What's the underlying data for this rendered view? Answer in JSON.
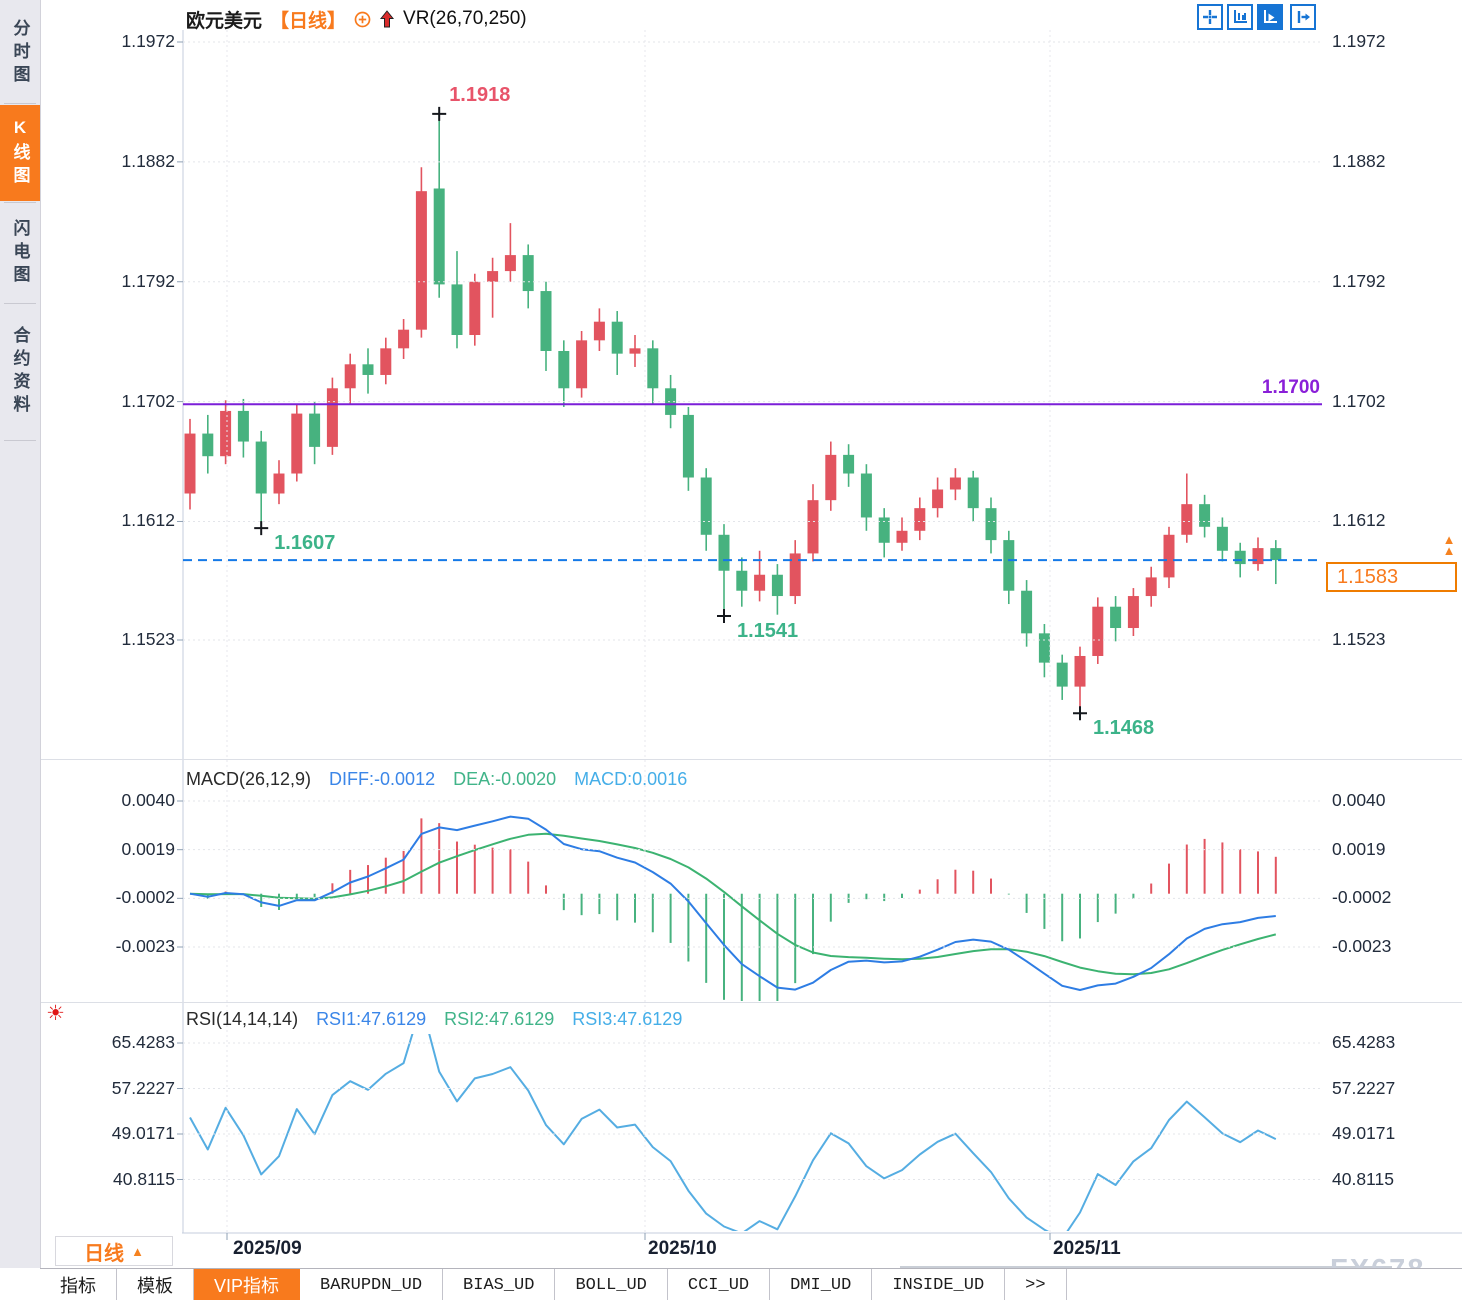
{
  "header": {
    "symbol": "欧元美元",
    "period_tag": "【日线】",
    "overlay_indicator": "VR(26,70,250)"
  },
  "toolbar_icons": [
    "crosshair-icon",
    "axis-scale-icon",
    "axis-play-icon",
    "detach-icon"
  ],
  "sidebar": {
    "items": [
      {
        "label": "分时图",
        "active": false
      },
      {
        "label": "K线图",
        "active": true
      },
      {
        "label": "闪电图",
        "active": false
      },
      {
        "label": "合约资料",
        "active": false
      }
    ]
  },
  "price_panel": {
    "y_labels": [
      "1.1972",
      "1.1882",
      "1.1792",
      "1.1702",
      "1.1612",
      "1.1523"
    ],
    "y_values": [
      1.1972,
      1.1882,
      1.1792,
      1.1702,
      1.1612,
      1.1523
    ],
    "hline": {
      "value": 1.17,
      "label": "1.1700"
    },
    "current": {
      "value": 1.1583,
      "label": "1.1583"
    },
    "annotations": [
      {
        "text": "1.1918",
        "index": 14,
        "type": "high"
      },
      {
        "text": "1.1607",
        "index": 4,
        "type": "low"
      },
      {
        "text": "1.1541",
        "index": 30,
        "type": "low"
      },
      {
        "text": "1.1468",
        "index": 50,
        "type": "low"
      }
    ]
  },
  "macd_panel": {
    "title": "MACD(26,12,9)",
    "diff_label": "DIFF:-0.0012",
    "dea_label": "DEA:-0.0020",
    "macd_label": "MACD:0.0016",
    "y_labels": [
      "0.0040",
      "0.0019",
      "-0.0002",
      "-0.0023"
    ],
    "y_values": [
      0.004,
      0.0019,
      -0.0002,
      -0.0023
    ]
  },
  "rsi_panel": {
    "title": "RSI(14,14,14)",
    "rsi1_label": "RSI1:47.6129",
    "rsi2_label": "RSI2:47.6129",
    "rsi3_label": "RSI3:47.6129",
    "y_labels": [
      "65.4283",
      "57.2227",
      "49.0171",
      "40.8115"
    ],
    "y_values": [
      65.4283,
      57.2227,
      49.0171,
      40.8115
    ]
  },
  "x_axis": {
    "labels": [
      "2025/09",
      "2025/10",
      "2025/11"
    ],
    "positions": [
      227,
      645,
      1050
    ]
  },
  "period_button": {
    "label": "日线"
  },
  "tabs": [
    {
      "label": "指标",
      "active": false
    },
    {
      "label": "模板",
      "active": false
    },
    {
      "label": "VIP指标",
      "active": true
    },
    {
      "label": "BARUPDN_UD",
      "active": false
    },
    {
      "label": "BIAS_UD",
      "active": false
    },
    {
      "label": "BOLL_UD",
      "active": false
    },
    {
      "label": "CCI_UD",
      "active": false
    },
    {
      "label": "DMI_UD",
      "active": false
    },
    {
      "label": "INSIDE_UD",
      "active": false
    },
    {
      "label": ">>",
      "active": false
    }
  ],
  "watermark": "FX678",
  "chart_data": {
    "type": "candlestick",
    "symbol": "EUR/USD 欧元美元",
    "period": "daily 日线",
    "x_range_labels": [
      "2025/09",
      "2025/10",
      "2025/11"
    ],
    "price_axis": {
      "top": 1.1972,
      "bottom": 1.1523
    },
    "colors": {
      "up": "#e2545f",
      "down": "#47b27f",
      "accent_orange": "#f87a1d",
      "hline_purple": "#7b1fd8",
      "current_blue": "#1479e8",
      "diff_line": "#2e7de4",
      "dea_line": "#3cb371",
      "rsi_line": "#55ade2"
    },
    "ohlc": [
      [
        1.1633,
        1.1689,
        1.1621,
        1.1678
      ],
      [
        1.1678,
        1.1692,
        1.1648,
        1.1661
      ],
      [
        1.1661,
        1.1703,
        1.1655,
        1.1695
      ],
      [
        1.1695,
        1.1704,
        1.166,
        1.1672
      ],
      [
        1.1672,
        1.168,
        1.1607,
        1.1633
      ],
      [
        1.1633,
        1.1658,
        1.1625,
        1.1648
      ],
      [
        1.1648,
        1.17,
        1.1642,
        1.1693
      ],
      [
        1.1693,
        1.1702,
        1.1655,
        1.1668
      ],
      [
        1.1668,
        1.172,
        1.1662,
        1.1712
      ],
      [
        1.1712,
        1.1738,
        1.17,
        1.173
      ],
      [
        1.173,
        1.1742,
        1.1708,
        1.1722
      ],
      [
        1.1722,
        1.175,
        1.1715,
        1.1742
      ],
      [
        1.1742,
        1.1764,
        1.1734,
        1.1756
      ],
      [
        1.1756,
        1.1878,
        1.175,
        1.186
      ],
      [
        1.1862,
        1.1918,
        1.178,
        1.179
      ],
      [
        1.179,
        1.1815,
        1.1742,
        1.1752
      ],
      [
        1.1752,
        1.1798,
        1.1744,
        1.1792
      ],
      [
        1.1792,
        1.181,
        1.1765,
        1.18
      ],
      [
        1.18,
        1.1836,
        1.1792,
        1.1812
      ],
      [
        1.1812,
        1.182,
        1.1772,
        1.1785
      ],
      [
        1.1785,
        1.1792,
        1.1725,
        1.174
      ],
      [
        1.174,
        1.1748,
        1.1698,
        1.1712
      ],
      [
        1.1712,
        1.1755,
        1.1705,
        1.1748
      ],
      [
        1.1748,
        1.1772,
        1.174,
        1.1762
      ],
      [
        1.1762,
        1.177,
        1.1722,
        1.1738
      ],
      [
        1.1738,
        1.1752,
        1.1728,
        1.1742
      ],
      [
        1.1742,
        1.1748,
        1.17,
        1.1712
      ],
      [
        1.1712,
        1.1722,
        1.1682,
        1.1692
      ],
      [
        1.1692,
        1.1698,
        1.1635,
        1.1645
      ],
      [
        1.1645,
        1.1652,
        1.159,
        1.1602
      ],
      [
        1.1602,
        1.161,
        1.1541,
        1.1575
      ],
      [
        1.1575,
        1.1585,
        1.1548,
        1.156
      ],
      [
        1.156,
        1.159,
        1.1552,
        1.1572
      ],
      [
        1.1572,
        1.158,
        1.1542,
        1.1556
      ],
      [
        1.1556,
        1.1598,
        1.155,
        1.1588
      ],
      [
        1.1588,
        1.164,
        1.1582,
        1.1628
      ],
      [
        1.1628,
        1.1672,
        1.162,
        1.1662
      ],
      [
        1.1662,
        1.167,
        1.1638,
        1.1648
      ],
      [
        1.1648,
        1.1655,
        1.1605,
        1.1615
      ],
      [
        1.1615,
        1.1622,
        1.1585,
        1.1596
      ],
      [
        1.1596,
        1.1615,
        1.159,
        1.1605
      ],
      [
        1.1605,
        1.163,
        1.1598,
        1.1622
      ],
      [
        1.1622,
        1.1645,
        1.1615,
        1.1636
      ],
      [
        1.1636,
        1.1652,
        1.1628,
        1.1645
      ],
      [
        1.1645,
        1.165,
        1.1612,
        1.1622
      ],
      [
        1.1622,
        1.163,
        1.1588,
        1.1598
      ],
      [
        1.1598,
        1.1605,
        1.155,
        1.156
      ],
      [
        1.156,
        1.1568,
        1.1518,
        1.1528
      ],
      [
        1.1528,
        1.1535,
        1.1495,
        1.1506
      ],
      [
        1.1506,
        1.1512,
        1.1478,
        1.1488
      ],
      [
        1.1488,
        1.1518,
        1.1468,
        1.1511
      ],
      [
        1.1511,
        1.1555,
        1.1505,
        1.1548
      ],
      [
        1.1548,
        1.1556,
        1.1522,
        1.1532
      ],
      [
        1.1532,
        1.1562,
        1.1526,
        1.1556
      ],
      [
        1.1556,
        1.1578,
        1.1548,
        1.157
      ],
      [
        1.157,
        1.1608,
        1.1562,
        1.1602
      ],
      [
        1.1602,
        1.1648,
        1.1596,
        1.1625
      ],
      [
        1.1625,
        1.1632,
        1.16,
        1.1608
      ],
      [
        1.1608,
        1.1615,
        1.1582,
        1.159
      ],
      [
        1.159,
        1.1596,
        1.157,
        1.158
      ],
      [
        1.158,
        1.16,
        1.1575,
        1.1592
      ],
      [
        1.1592,
        1.1598,
        1.1565,
        1.1583
      ]
    ],
    "indicators": {
      "macd": {
        "params": [
          26,
          12,
          9
        ],
        "diff": -0.0012,
        "dea": -0.002,
        "macd": 0.0016,
        "axis": [
          0.004,
          0.0019,
          -0.0002,
          -0.0023
        ]
      },
      "rsi": {
        "params": [
          14,
          14,
          14
        ],
        "rsi1": 47.6129,
        "rsi2": 47.6129,
        "rsi3": 47.6129,
        "axis": [
          65.4283,
          57.2227,
          49.0171,
          40.8115
        ]
      }
    },
    "key_points": {
      "high": 1.1918,
      "lows": [
        1.1607,
        1.1541,
        1.1468
      ],
      "hline": 1.17,
      "last": 1.1583
    }
  }
}
